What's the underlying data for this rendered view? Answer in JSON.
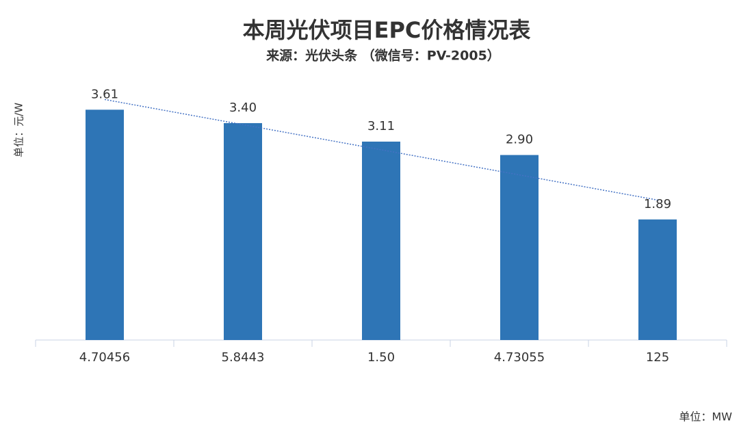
{
  "chart_data": {
    "type": "bar",
    "title": "本周光伏项目EPC价格情况表",
    "subtitle": "来源：光伏头条 （微信号：PV-2005）",
    "y_label": "单位：元/W",
    "x_label": "单位：MW",
    "categories": [
      "4.70456",
      "5.8443",
      "1.50",
      "4.73055",
      "125"
    ],
    "values": [
      3.61,
      3.4,
      3.11,
      2.9,
      1.89
    ],
    "value_labels": [
      "3.61",
      "3.40",
      "3.11",
      "2.90",
      "1.89"
    ],
    "color": "#2e75b6",
    "ylim": [
      0,
      4
    ],
    "trendline": true,
    "trendline_color": "#4472c4",
    "title_color": "#1f8f1f"
  }
}
